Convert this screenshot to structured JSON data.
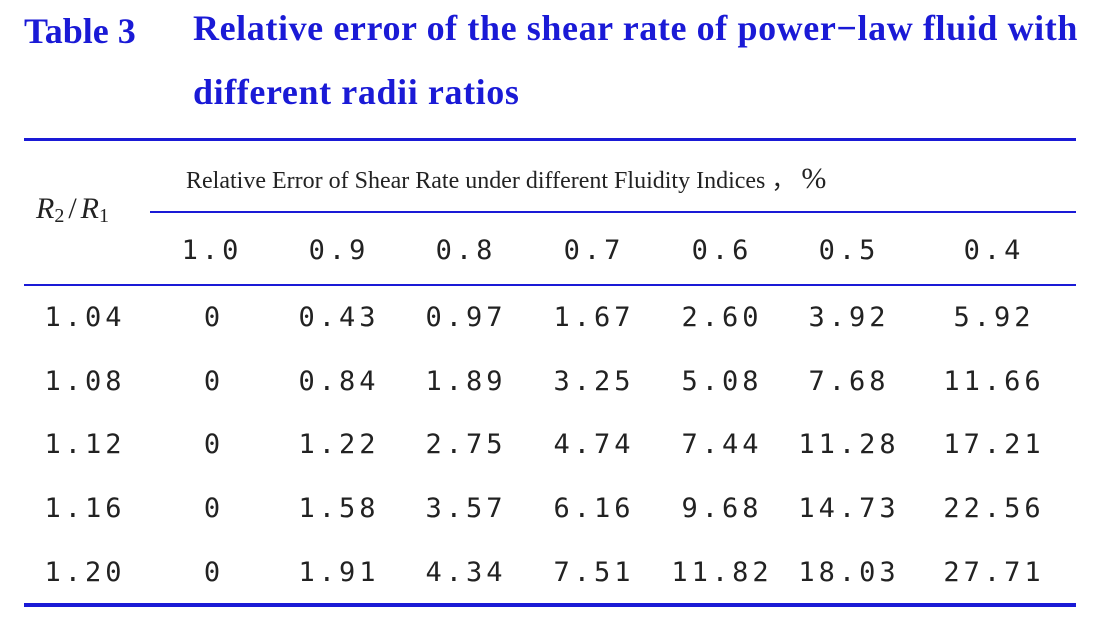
{
  "caption": {
    "label": "Table 3",
    "text": "Relative error of the shear rate of power−law fluid with different radii ratios"
  },
  "table": {
    "stub_header": {
      "r2": "R",
      "r2_sub": "2",
      "slash": "/",
      "r1": "R",
      "r1_sub": "1"
    },
    "group_header": "Relative Error of Shear Rate under different Fluidity Indices ，",
    "group_header_unit": "%",
    "columns": [
      "1.0",
      "0.9",
      "0.8",
      "0.7",
      "0.6",
      "0.5",
      "0.4"
    ],
    "rows": [
      {
        "ratio": "1.04",
        "values": [
          "0",
          "0.43",
          "0.97",
          "1.67",
          "2.60",
          "3.92",
          "5.92"
        ]
      },
      {
        "ratio": "1.08",
        "values": [
          "0",
          "0.84",
          "1.89",
          "3.25",
          "5.08",
          "7.68",
          "11.66"
        ]
      },
      {
        "ratio": "1.12",
        "values": [
          "0",
          "1.22",
          "2.75",
          "4.74",
          "7.44",
          "11.28",
          "17.21"
        ]
      },
      {
        "ratio": "1.16",
        "values": [
          "0",
          "1.58",
          "3.57",
          "6.16",
          "9.68",
          "14.73",
          "22.56"
        ]
      },
      {
        "ratio": "1.20",
        "values": [
          "0",
          "1.91",
          "4.34",
          "7.51",
          "11.82",
          "18.03",
          "27.71"
        ]
      }
    ]
  },
  "colors": {
    "accent": "#1a1ad6",
    "text": "#222222"
  }
}
